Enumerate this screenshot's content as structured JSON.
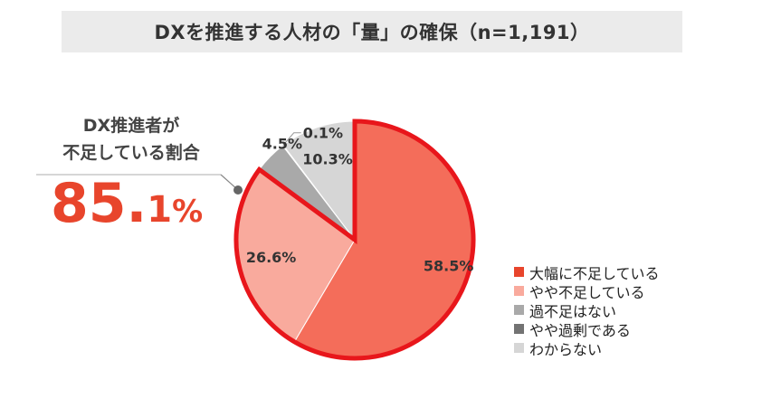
{
  "title": "DXを推進する人材の「量」の確保（n=1,191）",
  "callout": {
    "label_line1": "DX推進者が",
    "label_line2": "不足している割合",
    "value_int": "85.",
    "value_dec": "1",
    "value_pct": "%",
    "accent_color": "#e8452c"
  },
  "chart_data": {
    "type": "pie",
    "title": "DXを推進する人材の「量」の確保（n=1,191）",
    "slices": [
      {
        "name": "大幅に不足している",
        "value": 58.5,
        "label": "58.5%",
        "color": "#f46d5a",
        "highlight": true
      },
      {
        "name": "やや不足している",
        "value": 26.6,
        "label": "26.6%",
        "color": "#f9aa9d",
        "highlight": true
      },
      {
        "name": "過不足はない",
        "value": 4.5,
        "label": "4.5%",
        "color": "#a9a9a9",
        "highlight": false
      },
      {
        "name": "やや過剰である",
        "value": 0.1,
        "label": "0.1%",
        "color": "#737373",
        "highlight": false
      },
      {
        "name": "わからない",
        "value": 10.3,
        "label": "10.3%",
        "color": "#d6d6d6",
        "highlight": false
      }
    ],
    "start": "12 o'clock",
    "direction": "clockwise",
    "highlight_outline_color": "#e8161b",
    "legend_position": "right-bottom"
  }
}
